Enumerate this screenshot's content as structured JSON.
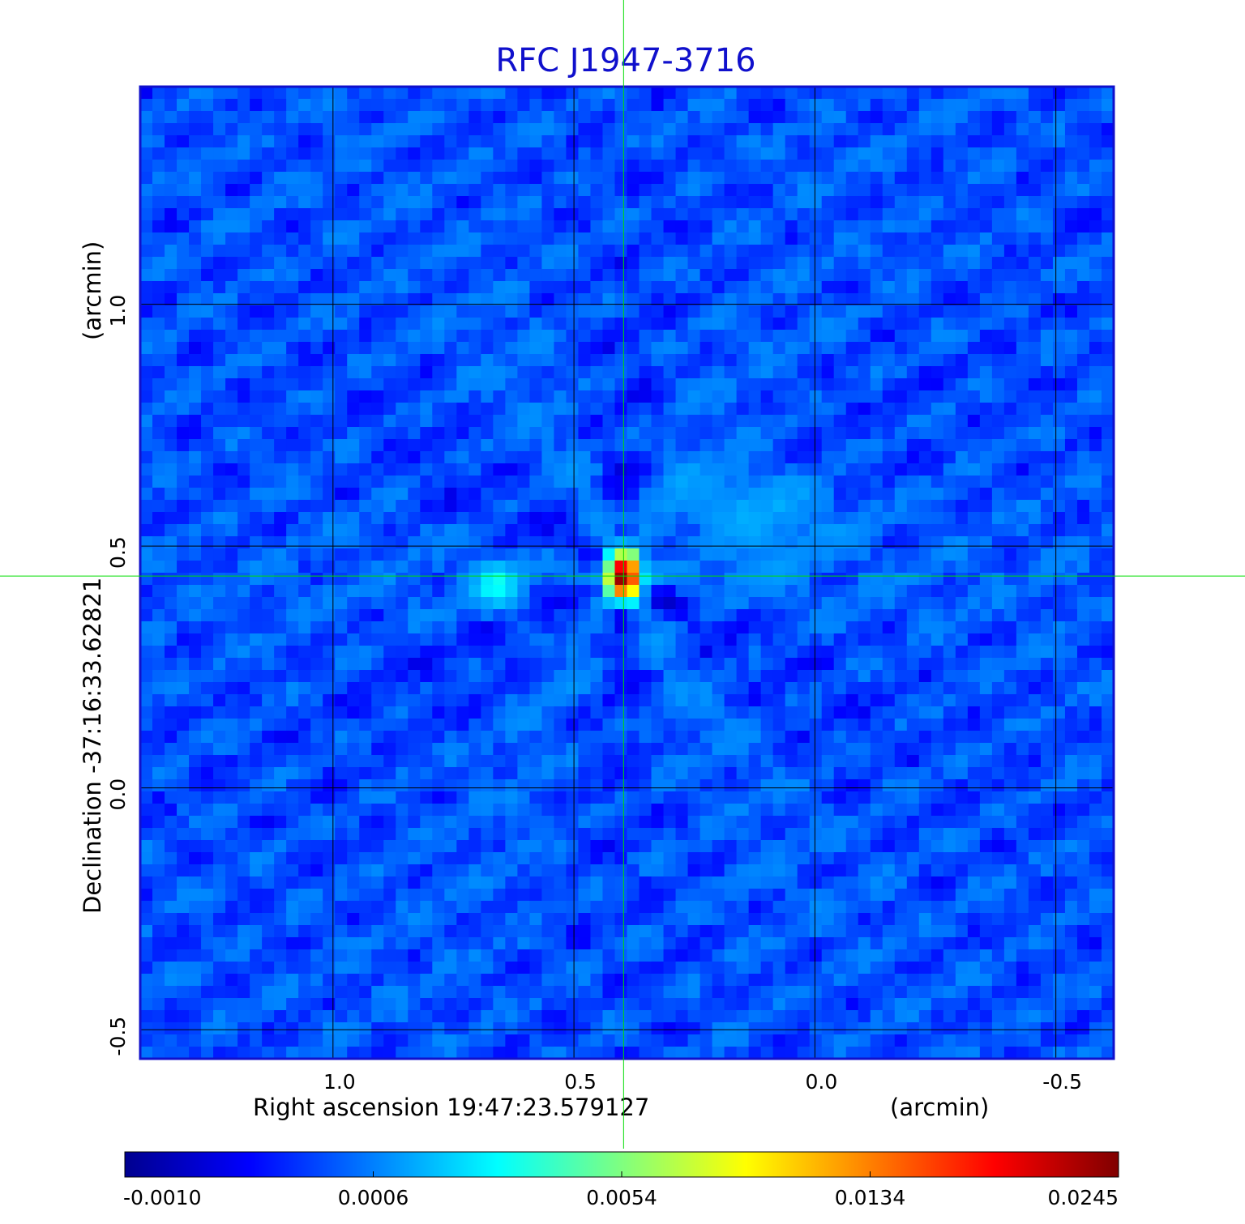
{
  "chart_data": {
    "type": "heatmap",
    "title": "RFC J1947-3716",
    "xlabel": "Right ascension  19:47:23.579127",
    "xunit": "(arcmin)",
    "ylabel": "Declination  -37:16:33.62821",
    "yunit": "(arcmin)",
    "xlim": [
      1.4,
      -0.62
    ],
    "ylim": [
      -0.56,
      1.45
    ],
    "x_ticks": [
      "1.0",
      "0.5",
      "0.0",
      "-0.5"
    ],
    "x_tick_values": [
      1.0,
      0.5,
      0.0,
      -0.5
    ],
    "y_ticks": [
      "1.0",
      "0.5",
      "0.0",
      "-0.5"
    ],
    "y_tick_values": [
      1.0,
      0.5,
      0.0,
      -0.5
    ],
    "grid": true,
    "crosshair": {
      "x": 0.397,
      "y": 0.438,
      "color": "#00dd00"
    },
    "colormap": "jet",
    "colorbar": {
      "labels": [
        "-0.0010",
        "0.0006",
        "0.0054",
        "0.0134",
        "0.0245"
      ],
      "values": [
        -0.001,
        0.0006,
        0.0054,
        0.0134,
        0.0245
      ]
    },
    "background_level": 0.0003,
    "sources": [
      {
        "x": 0.397,
        "y": 0.438,
        "peak": 0.0245,
        "type": "compact core"
      },
      {
        "x": 0.66,
        "y": 0.42,
        "peak": 0.0048,
        "type": "secondary blob"
      },
      {
        "x": 0.13,
        "y": 0.57,
        "peak": 0.0024,
        "type": "diffuse emission"
      }
    ]
  }
}
